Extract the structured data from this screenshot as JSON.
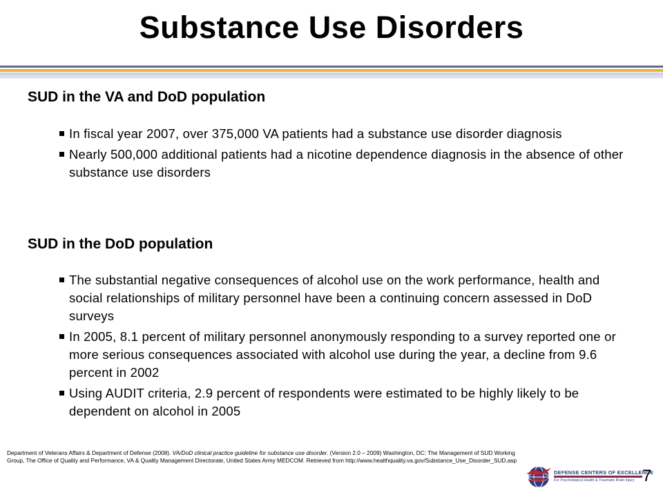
{
  "slide": {
    "title": "Substance Use Disorders",
    "page_number": "7"
  },
  "sections": [
    {
      "heading": "SUD in the VA and DoD population",
      "bullets": [
        "In fiscal year 2007, over 375,000 VA patients had a substance use disorder diagnosis",
        "Nearly 500,000 additional patients had a nicotine dependence diagnosis in the absence of other substance use disorders"
      ]
    },
    {
      "heading": "SUD in the DoD population",
      "bullets": [
        "The substantial negative consequences of alcohol use on the work performance, health and social relationships of military personnel have been a continuing concern assessed in DoD surveys",
        "In 2005, 8.1 percent of military personnel anonymously responding to a survey reported one or more serious consequences associated with alcohol use during the year, a decline from 9.6 percent in 2002",
        "Using AUDIT criteria, 2.9 percent of respondents were estimated to be highly likely to be dependent on alcohol in 2005"
      ]
    }
  ],
  "reference": {
    "prefix": "Department of Veterans Affairs & Department of Defense (2008). ",
    "italic": "VA/DoD clinical practice guideline for substance use disorder.",
    "suffix": " (Version 2.0 – 2009) Washington, DC: The Management of SUD Working Group, The Office of Quality and Performance, VA & Quality Management Directorate, United States Army MEDCOM. Retrieved from http://www.healthquality.va.gov/Substance_Use_Disorder_SUD.asp"
  },
  "logo": {
    "name": "DEFENSE CENTERS OF EXCELLENCE",
    "tagline": "For Psychological Health & Traumatic Brain Injury",
    "colors": {
      "navy": "#2a3d80",
      "red": "#c8202f"
    }
  }
}
